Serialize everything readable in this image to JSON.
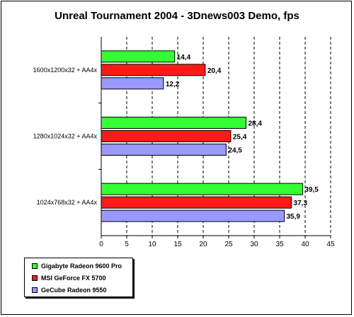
{
  "chart_data": {
    "type": "bar",
    "orientation": "horizontal",
    "title": "Unreal Tournament 2004 - 3Dnews003 Demo, fps",
    "categories": [
      "1600x1200x32 + AA4x",
      "1280x1024x32 + AA4x",
      "1024x768x32 + AA4x"
    ],
    "series": [
      {
        "name": "Gigabyte Radeon 9600 Pro",
        "color": "#33ff33",
        "values": [
          14.4,
          28.4,
          39.5
        ],
        "labels": [
          "14,4",
          "28,4",
          "39,5"
        ]
      },
      {
        "name": "MSI GeForce FX 5700",
        "color": "#ff1a1a",
        "values": [
          20.4,
          25.4,
          37.3
        ],
        "labels": [
          "20,4",
          "25,4",
          "37,3"
        ]
      },
      {
        "name": "GeCube Radeon 9550",
        "color": "#9999ff",
        "values": [
          12.2,
          24.5,
          35.9
        ],
        "labels": [
          "12,2",
          "24,5",
          "35,9"
        ]
      }
    ],
    "xlim": [
      0,
      45
    ],
    "xticks": [
      0,
      5,
      10,
      15,
      20,
      25,
      30,
      35,
      40,
      45
    ],
    "grid": "vertical dashed",
    "legend_position": "bottom-left"
  }
}
